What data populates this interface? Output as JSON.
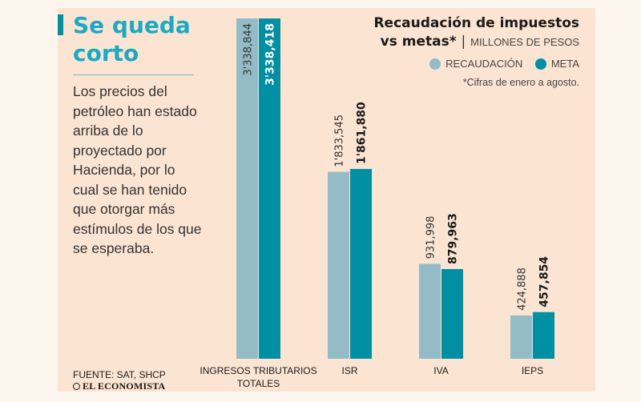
{
  "article": {
    "headline": "Se queda corto",
    "body": "Los precios del petróleo han estado arriba de lo proyectado por Hacienda, por lo cual se han tenido que otorgar más estímulos de los que se esperaba.",
    "source": "FUENTE: SAT, SHCP",
    "logo": "EL ECONOMISTA"
  },
  "colors": {
    "recaudacion": "#93bcc6",
    "meta": "#008fa3",
    "accent": "#1ba9c4",
    "background": "#fce4d2"
  },
  "chart_data": {
    "type": "bar",
    "title_line1": "Recaudación de impuestos",
    "title_line2": "vs metas*",
    "title_separator": "|",
    "units": "MILLONES DE PESOS",
    "note": "*Cifras de enero a agosto.",
    "legend_position": "top-right",
    "grid": false,
    "categories": [
      [
        "INGRESOS TRIBUTARIOS",
        "TOTALES"
      ],
      [
        "ISR"
      ],
      [
        "IVA"
      ],
      [
        "IEPS"
      ]
    ],
    "series": [
      {
        "name": "RECAUDACIÓN",
        "values": [
          3338844,
          1833545,
          931998,
          424888
        ],
        "labels": [
          "3'338,844",
          "1'833,545",
          "931,998",
          "424,888"
        ]
      },
      {
        "name": "META",
        "values": [
          3338418,
          1861880,
          879963,
          457854
        ],
        "labels": [
          "3'338,418",
          "1'861,880",
          "879,963",
          "457,854"
        ]
      }
    ],
    "ylim": [
      0,
      3338844
    ]
  }
}
